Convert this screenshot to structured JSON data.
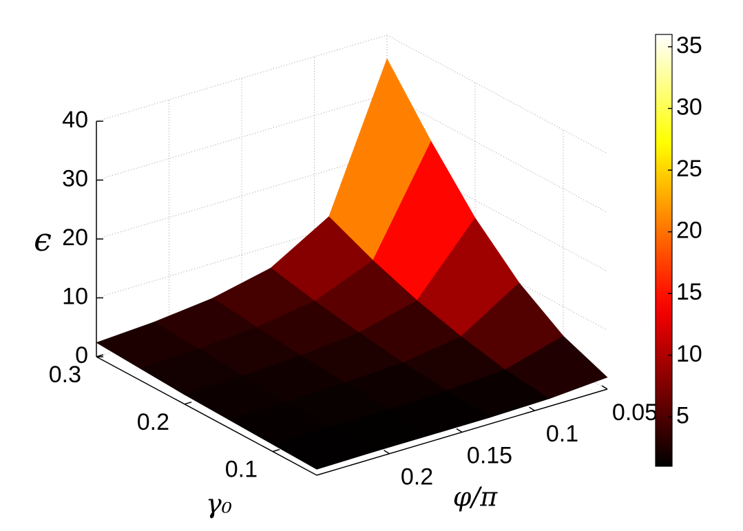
{
  "chart_data": {
    "type": "surface",
    "x_label": "φ/π",
    "y_label": "γ₀",
    "z_label": "ϵ",
    "x": [
      0.05,
      0.09,
      0.13,
      0.17,
      0.21,
      0.25
    ],
    "y": [
      0.05,
      0.1,
      0.15,
      0.2,
      0.25,
      0.3
    ],
    "z": [
      [
        2,
        5,
        10,
        17,
        26,
        36
      ],
      [
        1.3,
        2.2,
        3.8,
        5.9,
        8.7,
        12.1
      ],
      [
        1.1,
        1.6,
        2.3,
        3.4,
        4.7,
        6.3
      ],
      [
        1.1,
        1.3,
        1.8,
        2.4,
        3.2,
        4.1
      ],
      [
        1.1,
        1.2,
        1.5,
        1.9,
        2.4,
        3.0
      ],
      [
        1.0,
        1.2,
        1.4,
        1.6,
        2.0,
        2.4
      ]
    ],
    "xlim": [
      0.05,
      0.25
    ],
    "xticks": [
      {
        "value": 0.05,
        "label": "0.05"
      },
      0.1,
      0.15,
      0.2
    ],
    "ylim": [
      0.05,
      0.3
    ],
    "yticks": [
      0.1,
      0.2,
      0.3
    ],
    "zlim": [
      0,
      40
    ],
    "zticks": [
      0,
      10,
      20,
      30,
      40
    ],
    "colormap": "hot",
    "colorbar_lim": [
      1,
      36
    ],
    "colorbar_ticks": [
      5,
      10,
      15,
      20,
      25,
      30,
      35
    ],
    "grid": true
  }
}
